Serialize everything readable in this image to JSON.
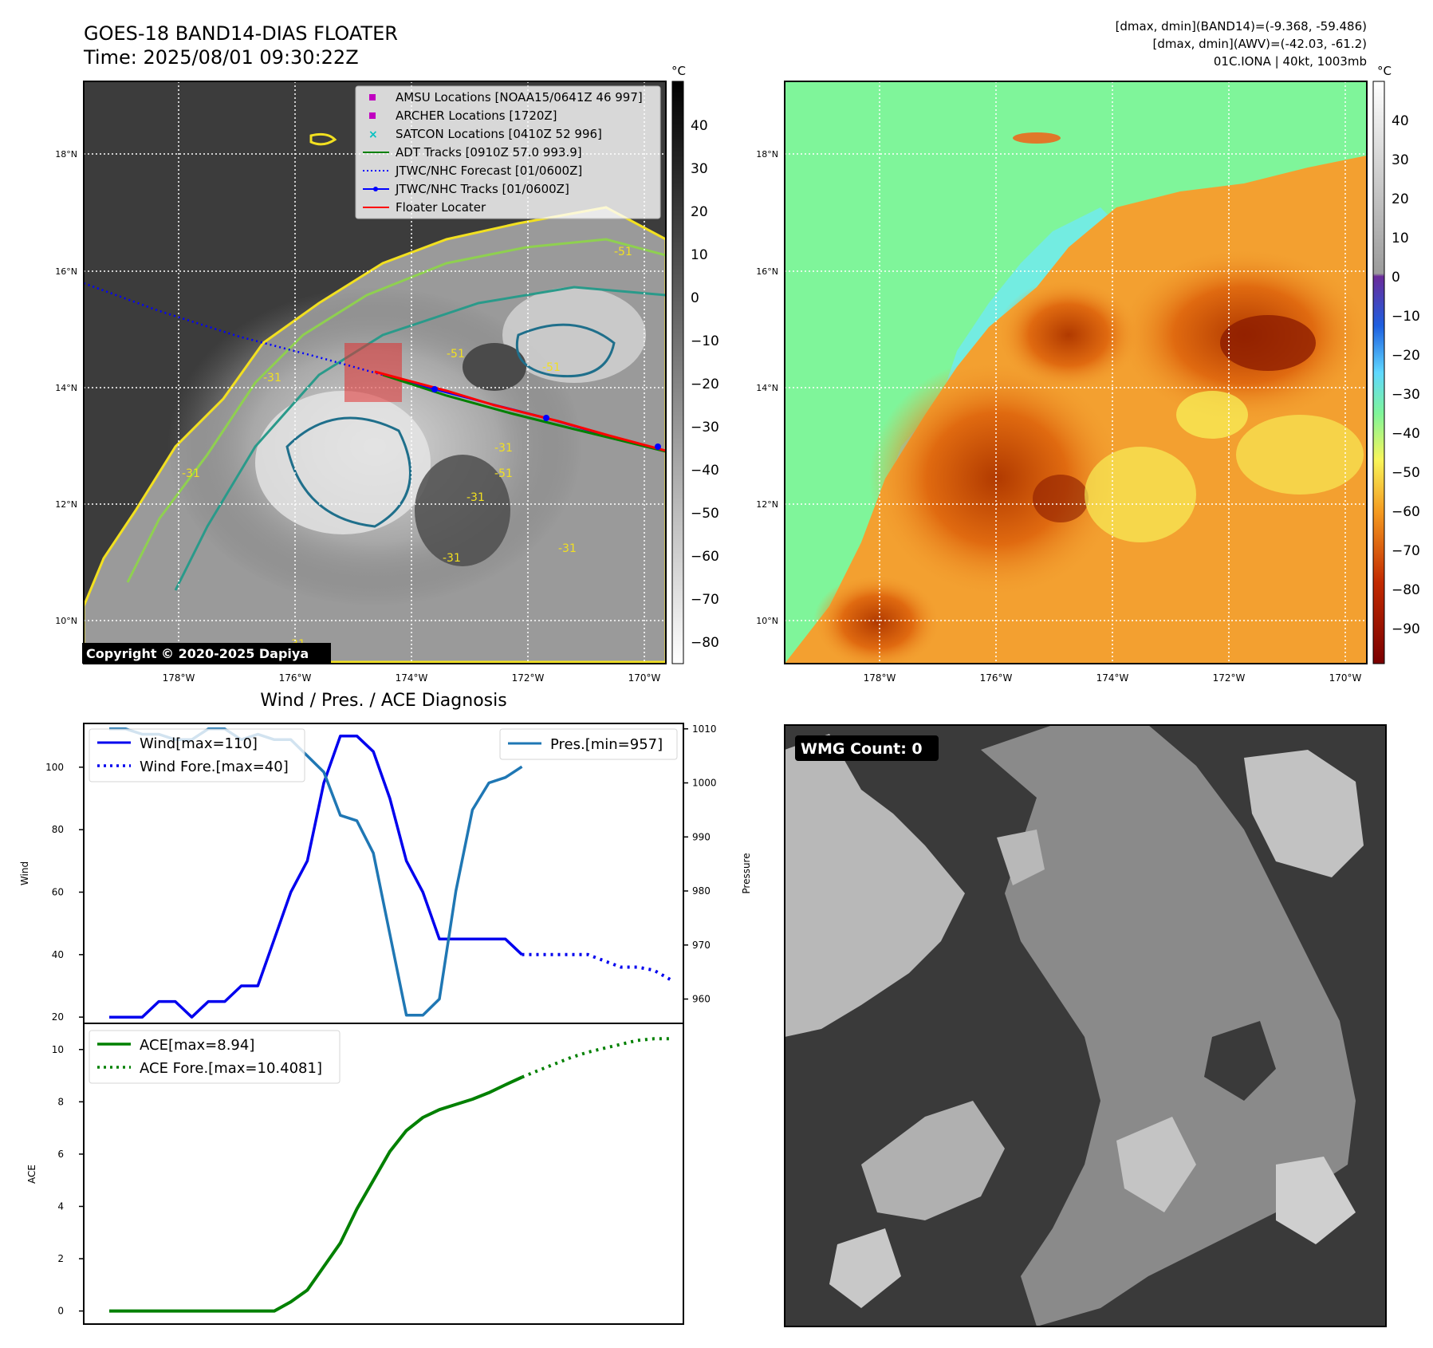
{
  "header": {
    "title_line1": "GOES-18 BAND14-DIAS FLOATER",
    "title_line2": "Time: 2025/08/01 09:30:22Z",
    "info_line1": "[dmax, dmin](BAND14)=(-9.368, -59.486)",
    "info_line2": "[dmax, dmin](AWV)=(-42.03, -61.2)",
    "info_line3": "01C.IONA | 40kt, 1003mb"
  },
  "colors": {
    "wind": "#0000ee",
    "pressure": "#1f77b4",
    "ace": "#008000",
    "track_red": "#ff0000",
    "forecast_blue": "#0000ff",
    "adt_green": "#008000",
    "marker_magenta": "#c000c0",
    "marker_cyan": "#00c0c0"
  },
  "map_common": {
    "lat_ticks": [
      "18°N",
      "16°N",
      "14°N",
      "12°N",
      "10°N"
    ],
    "lon_ticks": [
      "178°W",
      "176°W",
      "174°W",
      "172°W",
      "170°W"
    ]
  },
  "ir_panel": {
    "colorbar_unit": "°C",
    "colorbar_ticks": [
      "40",
      "30",
      "20",
      "10",
      "0",
      "−10",
      "−20",
      "−30",
      "−40",
      "−50",
      "−60",
      "−70",
      "−80"
    ],
    "copyright": "Copyright © 2020-2025 Dapiya",
    "contour_labels": [
      "-51",
      "-31",
      "-51",
      "-51",
      "-31",
      "-31",
      "-31",
      "-31",
      "-31",
      "-31",
      "-51"
    ],
    "legend": [
      {
        "label": "AMSU Locations [NOAA15/0641Z 46 997]",
        "style": "square",
        "color": "#c000c0"
      },
      {
        "label": "ARCHER Locations [1720Z]",
        "style": "square",
        "color": "#c000c0"
      },
      {
        "label": "SATCON Locations [0410Z 52 996]",
        "style": "x",
        "color": "#00c0c0"
      },
      {
        "label": "ADT Tracks [0910Z 57.0 993.9]",
        "style": "line",
        "color": "#008000"
      },
      {
        "label": "JTWC/NHC Forecast [01/0600Z]",
        "style": "dotted",
        "color": "#0000ff"
      },
      {
        "label": "JTWC/NHC Tracks [01/0600Z]",
        "style": "dotline",
        "color": "#0000ff"
      },
      {
        "label": "Floater Locater",
        "style": "line",
        "color": "#ff0000"
      }
    ]
  },
  "wv_panel": {
    "colorbar_unit": "°C",
    "colorbar_ticks": [
      "40",
      "30",
      "20",
      "10",
      "0",
      "−10",
      "−20",
      "−30",
      "−40",
      "−50",
      "−60",
      "−70",
      "−80",
      "−90"
    ]
  },
  "wmg_panel": {
    "label": "WMG Count: 0"
  },
  "chart_data": [
    {
      "type": "line",
      "title": "Wind / Pres. / ACE Diagnosis",
      "ylabel": "Wind",
      "ylabel_right": "Pressure",
      "ylim": [
        18,
        114
      ],
      "ylim_right": [
        955.5,
        1011
      ],
      "yticks": [
        20,
        40,
        60,
        80,
        100
      ],
      "yticks_right": [
        960,
        970,
        980,
        990,
        1000,
        1010
      ],
      "legend_left": [
        "Wind[max=110]",
        "Wind Fore.[max=40]"
      ],
      "legend_right": [
        "Pres.[min=957]"
      ],
      "series": [
        {
          "name": "Wind[max=110]",
          "axis": "left",
          "style": "solid",
          "x": [
            0,
            1,
            2,
            3,
            4,
            5,
            6,
            7,
            8,
            9,
            10,
            11,
            12,
            13,
            14,
            15,
            16,
            17,
            18,
            19,
            20,
            21,
            22,
            23,
            24,
            25
          ],
          "values": [
            20,
            20,
            20,
            25,
            25,
            20,
            25,
            25,
            30,
            30,
            45,
            60,
            70,
            95,
            110,
            110,
            105,
            90,
            70,
            60,
            45,
            45,
            45,
            45,
            45,
            40
          ]
        },
        {
          "name": "Wind Fore.[max=40]",
          "axis": "left",
          "style": "dotted",
          "x": [
            25,
            26,
            27,
            28,
            29,
            30,
            31,
            32,
            33,
            34
          ],
          "values": [
            40,
            40,
            40,
            40,
            40,
            38,
            36,
            36,
            35,
            32
          ]
        },
        {
          "name": "Pres.[min=957]",
          "axis": "right",
          "style": "solid",
          "x": [
            0,
            1,
            2,
            3,
            4,
            5,
            6,
            7,
            8,
            9,
            10,
            11,
            12,
            13,
            14,
            15,
            16,
            17,
            18,
            19,
            20,
            21,
            22,
            23,
            24,
            25
          ],
          "values": [
            1010,
            1010,
            1009,
            1009,
            1008,
            1008,
            1010,
            1010,
            1008,
            1009,
            1008,
            1008,
            1005,
            1002,
            994,
            993,
            987,
            972,
            957,
            957,
            960,
            980,
            995,
            1000,
            1001,
            1003
          ]
        }
      ]
    },
    {
      "type": "line",
      "ylabel": "ACE",
      "ylim": [
        -0.5,
        11
      ],
      "yticks": [
        0,
        2,
        4,
        6,
        8,
        10
      ],
      "legend": [
        "ACE[max=8.94]",
        "ACE Fore.[max=10.4081]"
      ],
      "series": [
        {
          "name": "ACE[max=8.94]",
          "style": "solid",
          "x": [
            0,
            1,
            2,
            3,
            4,
            5,
            6,
            7,
            8,
            9,
            10,
            11,
            12,
            13,
            14,
            15,
            16,
            17,
            18,
            19,
            20,
            21,
            22,
            23,
            24,
            25
          ],
          "values": [
            0,
            0,
            0,
            0,
            0,
            0,
            0,
            0,
            0,
            0,
            0,
            0.35,
            0.8,
            1.7,
            2.6,
            3.9,
            5,
            6.1,
            6.9,
            7.4,
            7.7,
            7.9,
            8.1,
            8.35,
            8.65,
            8.94
          ]
        },
        {
          "name": "ACE Fore.[max=10.4081]",
          "style": "dotted",
          "x": [
            25,
            26,
            27,
            28,
            29,
            30,
            31,
            32,
            33,
            34
          ],
          "values": [
            8.94,
            9.2,
            9.45,
            9.7,
            9.9,
            10.05,
            10.2,
            10.35,
            10.41,
            10.41
          ]
        }
      ]
    }
  ]
}
